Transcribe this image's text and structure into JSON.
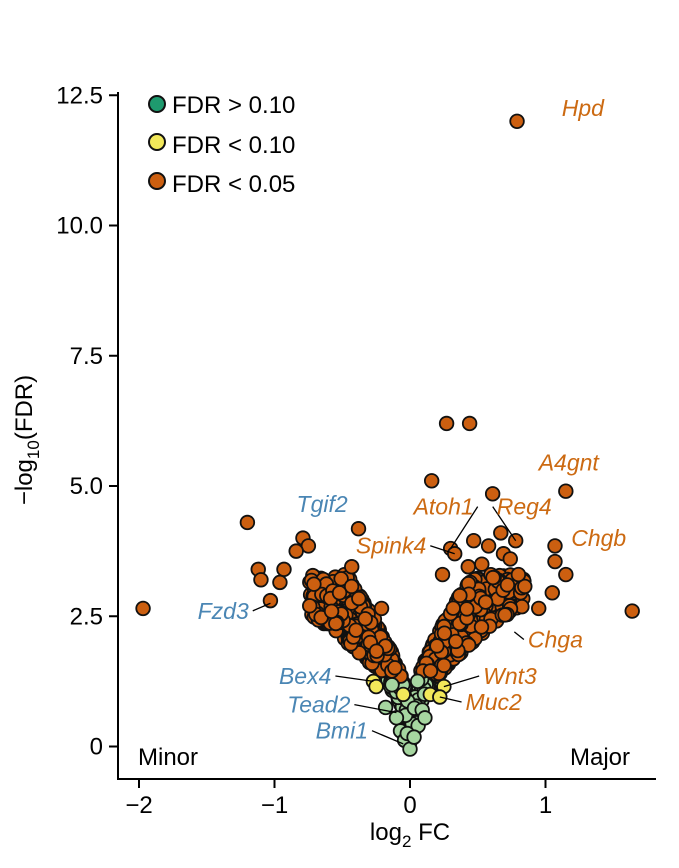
{
  "chart_data": {
    "type": "scatter",
    "title": "",
    "xlabel": "log2 FC",
    "xlabel_main": "log",
    "xlabel_sub": "2",
    "xlabel_tail": " FC",
    "ylabel": "−log10(FDR)",
    "ylabel_main": "−log",
    "ylabel_sub": "10",
    "ylabel_tail": "(FDR)",
    "xlim": [
      -2.1,
      1.85
    ],
    "ylim": [
      -0.6,
      12.8
    ],
    "x_ticks": [
      -2,
      -1,
      0,
      1
    ],
    "x_tick_labels": [
      "−2",
      "−1",
      "0",
      "1"
    ],
    "y_ticks": [
      0,
      2.5,
      5.0,
      7.5,
      10.0,
      12.5
    ],
    "y_tick_labels": [
      "0",
      "2.5",
      "5.0",
      "7.5",
      "10.0",
      "12.5"
    ],
    "colors": {
      "fdr_gt_010": "#1e9a6e",
      "fdr_lt_010": "#f2e85a",
      "fdr_lt_005": "#cc5f10",
      "nonsig_fill": "#a6d6a0",
      "label_orange": "#cc6a12",
      "label_blue": "#4a86b4"
    },
    "legend": [
      {
        "label": "FDR > 0.10",
        "color": "#1e9a6e"
      },
      {
        "label": "FDR < 0.10",
        "color": "#f2e85a"
      },
      {
        "label": "FDR < 0.05",
        "color": "#cc5f10"
      }
    ],
    "corner_left": "Minor",
    "corner_right": "Major",
    "highlighted": [
      {
        "x": -1.97,
        "y": 2.65,
        "cat": "sig"
      },
      {
        "x": -1.2,
        "y": 4.3,
        "cat": "sig"
      },
      {
        "x": -0.79,
        "y": 4.0,
        "cat": "sig"
      },
      {
        "x": -0.75,
        "y": 3.85,
        "cat": "sig"
      },
      {
        "x": -0.84,
        "y": 3.75,
        "cat": "sig"
      },
      {
        "x": -0.38,
        "y": 4.18,
        "cat": "sig"
      },
      {
        "x": -0.43,
        "y": 3.45,
        "cat": "sig"
      },
      {
        "x": -1.12,
        "y": 3.4,
        "cat": "sig"
      },
      {
        "x": -1.1,
        "y": 3.2,
        "cat": "sig"
      },
      {
        "x": -0.96,
        "y": 3.15,
        "cat": "sig"
      },
      {
        "x": -0.93,
        "y": 3.4,
        "cat": "sig"
      },
      {
        "x": -1.03,
        "y": 2.8,
        "cat": "sig"
      },
      {
        "x": -0.74,
        "y": 2.7,
        "cat": "sig"
      },
      {
        "x": -0.52,
        "y": 2.95,
        "cat": "sig"
      },
      {
        "x": -0.21,
        "y": 2.65,
        "cat": "sig"
      },
      {
        "x": 0.27,
        "y": 6.2,
        "cat": "sig"
      },
      {
        "x": 0.44,
        "y": 6.2,
        "cat": "sig"
      },
      {
        "x": 0.16,
        "y": 5.1,
        "cat": "sig"
      },
      {
        "x": 0.61,
        "y": 4.85,
        "cat": "sig"
      },
      {
        "x": 1.15,
        "y": 4.9,
        "cat": "sig"
      },
      {
        "x": 0.79,
        "y": 12.0,
        "cat": "sig"
      },
      {
        "x": 0.67,
        "y": 4.1,
        "cat": "sig"
      },
      {
        "x": 0.78,
        "y": 3.95,
        "cat": "sig"
      },
      {
        "x": 0.47,
        "y": 3.95,
        "cat": "sig"
      },
      {
        "x": 0.53,
        "y": 3.5,
        "cat": "sig"
      },
      {
        "x": 0.58,
        "y": 3.85,
        "cat": "sig"
      },
      {
        "x": 0.3,
        "y": 3.8,
        "cat": "sig"
      },
      {
        "x": 0.33,
        "y": 3.7,
        "cat": "sig"
      },
      {
        "x": 0.69,
        "y": 3.7,
        "cat": "sig"
      },
      {
        "x": 0.74,
        "y": 3.6,
        "cat": "sig"
      },
      {
        "x": 0.8,
        "y": 3.3,
        "cat": "sig"
      },
      {
        "x": 1.07,
        "y": 3.85,
        "cat": "sig"
      },
      {
        "x": 1.07,
        "y": 3.55,
        "cat": "sig"
      },
      {
        "x": 1.15,
        "y": 3.3,
        "cat": "sig"
      },
      {
        "x": 0.95,
        "y": 2.65,
        "cat": "sig"
      },
      {
        "x": 1.05,
        "y": 2.95,
        "cat": "sig"
      },
      {
        "x": 1.64,
        "y": 2.6,
        "cat": "sig"
      },
      {
        "x": 0.43,
        "y": 3.45,
        "cat": "sig"
      },
      {
        "x": 0.24,
        "y": 3.3,
        "cat": "sig"
      },
      {
        "x": -0.27,
        "y": 1.25,
        "cat": "fdr10"
      },
      {
        "x": -0.25,
        "y": 1.15,
        "cat": "fdr10"
      },
      {
        "x": 0.15,
        "y": 1.0,
        "cat": "fdr10"
      },
      {
        "x": 0.25,
        "y": 1.15,
        "cat": "fdr10"
      },
      {
        "x": 0.22,
        "y": 0.95,
        "cat": "fdr10"
      },
      {
        "x": -0.05,
        "y": 1.0,
        "cat": "fdr10"
      },
      {
        "x": -0.1,
        "y": 0.55,
        "cat": "ns"
      },
      {
        "x": -0.07,
        "y": 0.3,
        "cat": "ns"
      },
      {
        "x": -0.04,
        "y": 0.12,
        "cat": "ns"
      },
      {
        "x": 0.0,
        "y": -0.05,
        "cat": "ns"
      },
      {
        "x": 0.06,
        "y": 0.4,
        "cat": "ns"
      },
      {
        "x": 0.09,
        "y": 0.7,
        "cat": "ns"
      },
      {
        "x": -0.18,
        "y": 0.75,
        "cat": "ns"
      },
      {
        "x": 0.11,
        "y": 0.55,
        "cat": "ns"
      },
      {
        "x": -0.02,
        "y": 0.25,
        "cat": "ns"
      },
      {
        "x": 0.03,
        "y": 0.18,
        "cat": "ns"
      }
    ],
    "annotations": [
      {
        "text": "Hpd",
        "color": "orange",
        "lx": 1.12,
        "ly": 12.1,
        "px": 0.79,
        "py": 12.0,
        "leader": false,
        "anchor": "start"
      },
      {
        "text": "A4gnt",
        "color": "orange",
        "lx": 0.95,
        "ly": 5.3,
        "px": 1.15,
        "py": 4.9,
        "leader": false,
        "anchor": "start"
      },
      {
        "text": "Chgb",
        "color": "orange",
        "lx": 1.19,
        "ly": 3.85,
        "px": 1.07,
        "py": 3.85,
        "leader": false,
        "anchor": "start"
      },
      {
        "text": "Reg4",
        "color": "orange",
        "lx": 0.64,
        "ly": 4.45,
        "px": 0.78,
        "py": 3.95,
        "leader": true,
        "anchor": "start"
      },
      {
        "text": "Atoh1",
        "color": "orange",
        "lx": 0.47,
        "ly": 4.45,
        "px": 0.3,
        "py": 3.8,
        "leader": true,
        "anchor": "end"
      },
      {
        "text": "Spink4",
        "color": "orange",
        "lx": 0.12,
        "ly": 3.7,
        "px": 0.33,
        "py": 3.7,
        "leader": true,
        "anchor": "end"
      },
      {
        "text": "Chga",
        "color": "orange",
        "lx": 0.87,
        "ly": 1.9,
        "px": 0.77,
        "py": 2.2,
        "leader": true,
        "anchor": "start"
      },
      {
        "text": "Wnt3",
        "color": "orange",
        "lx": 0.54,
        "ly": 1.2,
        "px": 0.25,
        "py": 1.15,
        "leader": true,
        "anchor": "start"
      },
      {
        "text": "Muc2",
        "color": "orange",
        "lx": 0.41,
        "ly": 0.7,
        "px": 0.22,
        "py": 0.95,
        "leader": true,
        "anchor": "start"
      },
      {
        "text": "Tgif2",
        "color": "blue",
        "lx": -0.46,
        "ly": 4.5,
        "px": -0.38,
        "py": 4.18,
        "leader": false,
        "anchor": "end"
      },
      {
        "text": "Fzd3",
        "color": "blue",
        "lx": -1.19,
        "ly": 2.45,
        "px": -1.03,
        "py": 2.75,
        "leader": true,
        "anchor": "end"
      },
      {
        "text": "Bex4",
        "color": "blue",
        "lx": -0.58,
        "ly": 1.2,
        "px": -0.27,
        "py": 1.25,
        "leader": true,
        "anchor": "end"
      },
      {
        "text": "Tead2",
        "color": "blue",
        "lx": -0.44,
        "ly": 0.65,
        "px": -0.1,
        "py": 0.65,
        "leader": true,
        "anchor": "end"
      },
      {
        "text": "Bmi1",
        "color": "blue",
        "lx": -0.31,
        "ly": 0.15,
        "px": -0.05,
        "py": 0.05,
        "leader": true,
        "anchor": "end"
      }
    ]
  }
}
